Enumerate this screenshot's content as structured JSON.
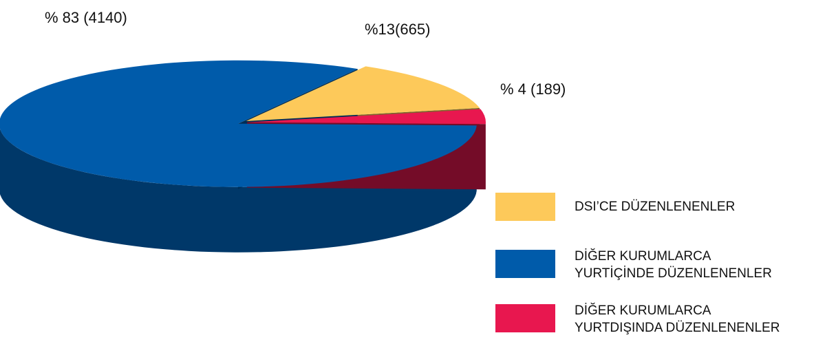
{
  "chart_data": {
    "type": "pie3d",
    "categories": [
      "DSI’CE DÜZENLENENLER",
      "DİĞER KURUMLARCA\nYURTİÇİNDE DÜZENLENENLER",
      "DİĞER KURUMLARCA\nYURTDIŞINDA DÜZENLENENLER"
    ],
    "values": [
      665,
      4140,
      189
    ],
    "value_labels": [
      "%13(665)",
      "% 83 (4140)",
      "% 4 (189)"
    ],
    "colors": [
      "#fdc95a",
      "#005baa",
      "#e8174f"
    ]
  }
}
